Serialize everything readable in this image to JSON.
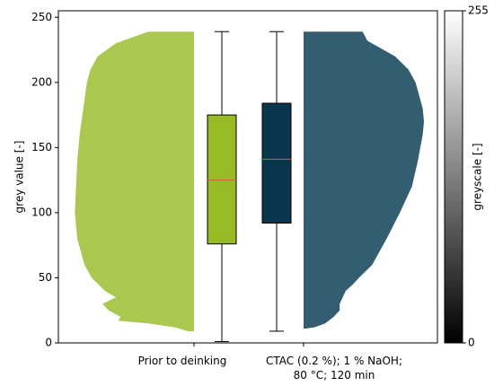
{
  "chart_data": {
    "type": "violin",
    "ylabel": "grey value  [-]",
    "ylim": [
      0,
      255
    ],
    "yticks": [
      0,
      50,
      100,
      150,
      200,
      250
    ],
    "categories": [
      "Prior to deinking",
      "CTAC (0.2 %); 1 % NaOH; 80 °C; 120 min"
    ],
    "median_color": "#e0504a",
    "groups": [
      {
        "side": "left",
        "color": "#abc84e",
        "box_color": "#97bb24",
        "violin": {
          "y": [
            239,
            230,
            220,
            210,
            200,
            180,
            160,
            140,
            120,
            100,
            80,
            60,
            50,
            40,
            35,
            30,
            25,
            20,
            17,
            15,
            12,
            9
          ],
          "density": [
            0.38,
            0.65,
            0.8,
            0.86,
            0.89,
            0.92,
            0.95,
            0.97,
            0.98,
            0.99,
            0.97,
            0.91,
            0.85,
            0.74,
            0.65,
            0.76,
            0.71,
            0.61,
            0.63,
            0.38,
            0.16,
            0.05
          ]
        },
        "box": {
          "whislo": 1,
          "q1": 76,
          "med": 125,
          "q3": 175,
          "whishi": 239
        }
      },
      {
        "side": "right",
        "color": "#335e71",
        "box_color": "#0a364d",
        "violin": {
          "y": [
            239,
            232,
            220,
            210,
            200,
            180,
            170,
            160,
            140,
            120,
            100,
            80,
            60,
            50,
            45,
            40,
            30,
            25,
            20,
            15,
            12,
            11
          ],
          "density": [
            0.49,
            0.53,
            0.76,
            0.87,
            0.93,
            0.99,
            1.0,
            0.99,
            0.95,
            0.9,
            0.8,
            0.69,
            0.57,
            0.46,
            0.41,
            0.35,
            0.3,
            0.3,
            0.25,
            0.18,
            0.09,
            0.02
          ]
        },
        "box": {
          "whislo": 9,
          "q1": 92,
          "med": 141,
          "q3": 184,
          "whishi": 239
        }
      }
    ],
    "colorbar": {
      "label": "greyscale  [-]",
      "clim": [
        0,
        255
      ],
      "ticks": [
        0,
        255
      ]
    }
  }
}
